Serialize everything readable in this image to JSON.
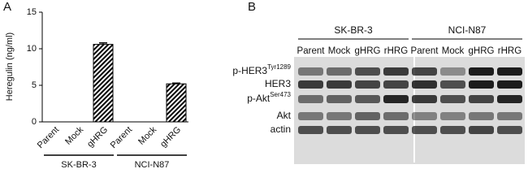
{
  "panel_labels": [
    "A",
    "B"
  ],
  "chart_data": {
    "type": "bar",
    "y_label": "Heregulin (ng/ml)",
    "categories": [
      "Parent",
      "Mock",
      "gHRG",
      "Parent",
      "Mock",
      "gHRG"
    ],
    "values": [
      0,
      0,
      10.6,
      0,
      0,
      5.2
    ],
    "errors": [
      0,
      0,
      0.2,
      0,
      0,
      0.1
    ],
    "groups": [
      "SK-BR-3",
      "NCI-N87"
    ],
    "color": "#000000",
    "ylim": [
      0,
      15
    ],
    "yticks": [
      0,
      5,
      10,
      15
    ],
    "grid": false
  },
  "blot": {
    "groups": [
      "SK-BR-3",
      "NCI-N87"
    ],
    "lanes": [
      "Parent",
      "Mock",
      "gHRG",
      "rHRG",
      "Parent",
      "Mock",
      "gHRG",
      "rHRG"
    ],
    "rows": [
      {
        "label": "p-HER3",
        "superscript": "Tyr1289"
      },
      {
        "label": "HER3"
      },
      {
        "label": "p-Akt",
        "superscript": "Ser473"
      },
      {
        "label": "Akt"
      },
      {
        "label": "actin"
      }
    ]
  }
}
